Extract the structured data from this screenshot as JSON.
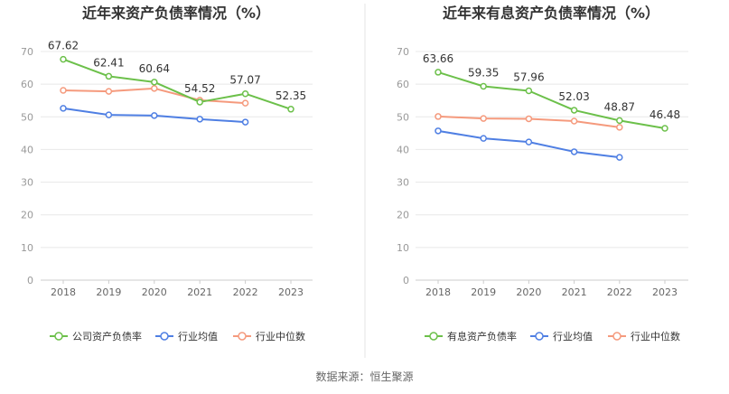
{
  "source_text": "数据来源：恒生聚源",
  "colors": {
    "series": [
      "#6cc04a",
      "#4f7fe3",
      "#f59a7d"
    ],
    "grid": "#e8e8e8",
    "axis": "#cccccc",
    "divider": "#e5e5e5"
  },
  "chart_data": [
    {
      "type": "line",
      "title": "近年来资产负债率情况（%）",
      "categories": [
        "2018",
        "2019",
        "2020",
        "2021",
        "2022",
        "2023"
      ],
      "ylim": [
        0,
        70
      ],
      "yticks": [
        0,
        10,
        20,
        30,
        40,
        50,
        60,
        70
      ],
      "grid": true,
      "legend": "bottom",
      "series": [
        {
          "name": "公司资产负债率",
          "values": [
            67.62,
            62.41,
            60.64,
            54.52,
            57.07,
            52.35
          ],
          "show_labels": true
        },
        {
          "name": "行业均值",
          "values": [
            52.6,
            50.6,
            50.4,
            49.3,
            48.4,
            null
          ],
          "show_labels": false
        },
        {
          "name": "行业中位数",
          "values": [
            58.1,
            57.8,
            58.7,
            55.1,
            54.2,
            null
          ],
          "show_labels": false
        }
      ]
    },
    {
      "type": "line",
      "title": "近年来有息资产负债率情况（%）",
      "categories": [
        "2018",
        "2019",
        "2020",
        "2021",
        "2022",
        "2023"
      ],
      "ylim": [
        0,
        70
      ],
      "yticks": [
        0,
        10,
        20,
        30,
        40,
        50,
        60,
        70
      ],
      "grid": true,
      "legend": "bottom",
      "series": [
        {
          "name": "有息资产负债率",
          "values": [
            63.66,
            59.35,
            57.96,
            52.03,
            48.87,
            46.48
          ],
          "show_labels": true
        },
        {
          "name": "行业均值",
          "values": [
            45.7,
            43.4,
            42.3,
            39.3,
            37.6,
            null
          ],
          "show_labels": false
        },
        {
          "name": "行业中位数",
          "values": [
            50.1,
            49.5,
            49.4,
            48.7,
            46.8,
            null
          ],
          "show_labels": false
        }
      ]
    }
  ]
}
